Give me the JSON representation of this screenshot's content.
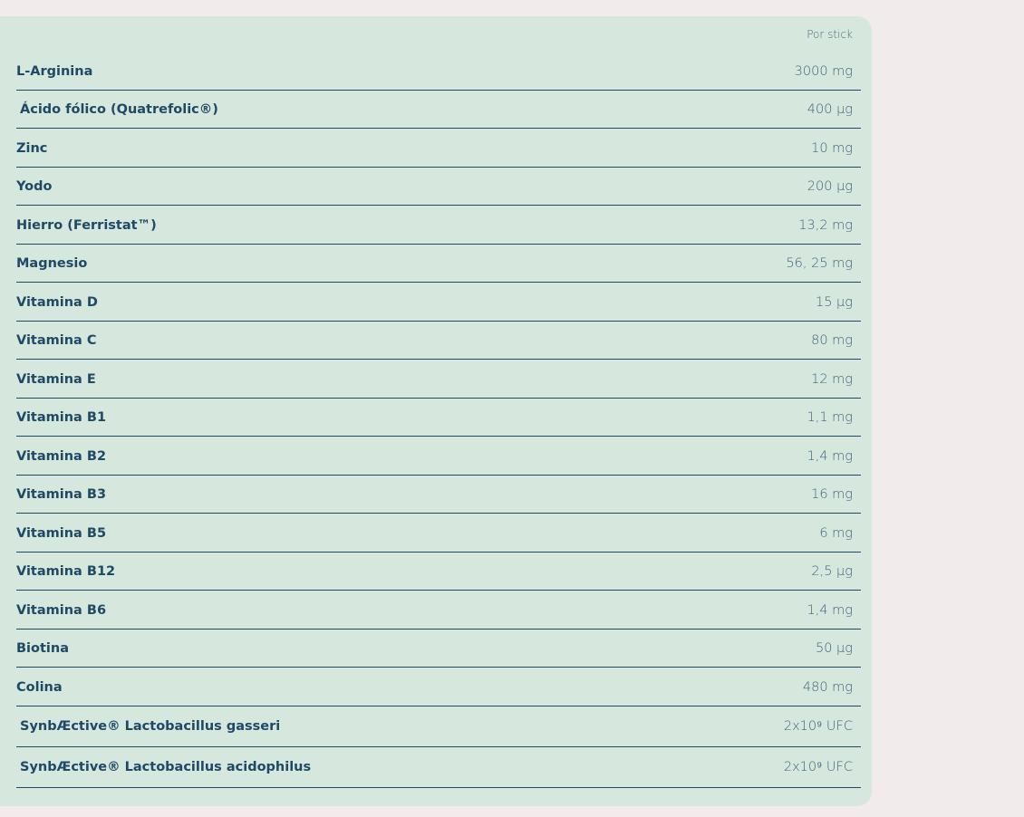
{
  "table": {
    "column_header": "Por stick",
    "rows": [
      {
        "name": "L-Arginina",
        "amount": "3000 mg"
      },
      {
        "name": "Ácido fólico (Quatrefolic®)",
        "amount": "400 µg"
      },
      {
        "name": "Zinc",
        "amount": "10 mg"
      },
      {
        "name": "Yodo",
        "amount": "200 µg"
      },
      {
        "name": "Hierro (Ferristat™)",
        "amount": "13,2 mg"
      },
      {
        "name": "Magnesio",
        "amount": "56, 25 mg"
      },
      {
        "name": "Vitamina D",
        "amount": "15 µg"
      },
      {
        "name": "Vitamina C",
        "amount": "80 mg"
      },
      {
        "name": "Vitamina E",
        "amount": "12 mg"
      },
      {
        "name": "Vitamina B1",
        "amount": "1,1 mg"
      },
      {
        "name": "Vitamina B2",
        "amount": "1,4 mg"
      },
      {
        "name": "Vitamina B3",
        "amount": "16 mg"
      },
      {
        "name": "Vitamina B5",
        "amount": "6 mg"
      },
      {
        "name": "Vitamina B12",
        "amount": "2,5 µg"
      },
      {
        "name": "Vitamina B6",
        "amount": "1,4 mg"
      },
      {
        "name": "Biotina",
        "amount": "50 µg"
      },
      {
        "name": "Colina",
        "amount": "480 mg"
      },
      {
        "name": "SynbÆctive® Lactobacillus gasseri",
        "amount": "2x10⁹ UFC"
      },
      {
        "name": "SynbÆctive® Lactobacillus acidophilus",
        "amount": "2x10⁹ UFC"
      }
    ]
  },
  "colors": {
    "page_background": "#f1ebeb",
    "panel_background": "#d6e7de",
    "text_primary": "#1e4a66",
    "divider": "#1e4a66"
  }
}
